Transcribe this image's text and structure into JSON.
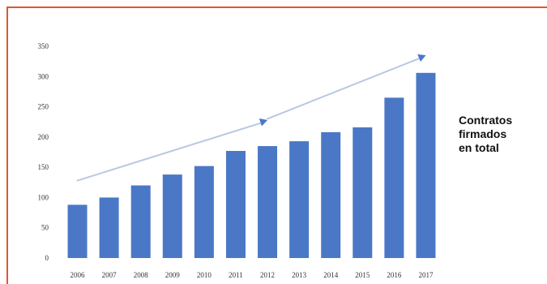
{
  "colors": {
    "frame": "#e4572e",
    "bar": "#4a78c6",
    "trend": "#b9c8e0",
    "trend_arrow": "#4a78c6"
  },
  "side_label": {
    "line1": "Contratos",
    "line2": "firmados",
    "line3": "en total"
  },
  "chart_data": {
    "type": "bar",
    "categories": [
      "2006",
      "2007",
      "2008",
      "2009",
      "2010",
      "2011",
      "2012",
      "2013",
      "2014",
      "2015",
      "2016",
      "2017"
    ],
    "values": [
      88,
      100,
      120,
      138,
      152,
      177,
      185,
      193,
      208,
      216,
      265,
      306
    ],
    "ylim": [
      0,
      350
    ],
    "yticks": [
      0,
      50,
      100,
      150,
      200,
      250,
      300,
      350
    ],
    "title": "",
    "xlabel": "",
    "ylabel": "",
    "grid": false,
    "legend": "none",
    "annotations": [
      {
        "type": "trend-arrow",
        "from_category": "2006",
        "to_category": "2012",
        "from_value": 128,
        "to_value": 228
      },
      {
        "type": "trend-arrow",
        "from_category": "2012",
        "to_category": "2017",
        "from_value": 230,
        "to_value": 335
      }
    ]
  }
}
